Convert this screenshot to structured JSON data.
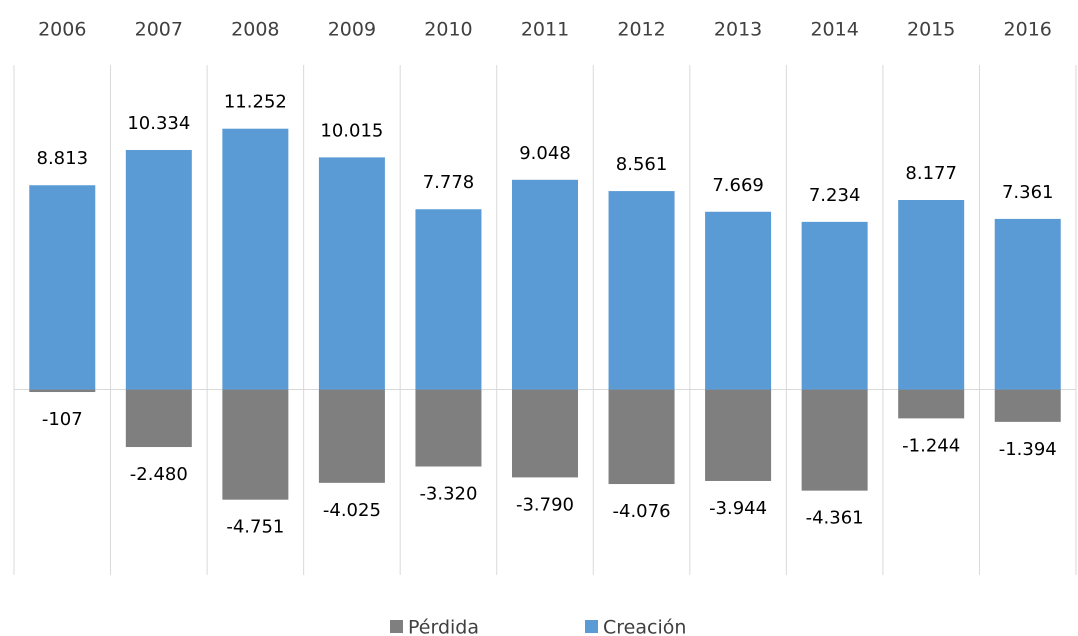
{
  "chart_data": {
    "type": "bar",
    "categories": [
      "2006",
      "2007",
      "2008",
      "2009",
      "2010",
      "2011",
      "2012",
      "2013",
      "2014",
      "2015",
      "2016"
    ],
    "series": [
      {
        "name": "Pérdida",
        "color": "#7f7f7f",
        "values": [
          -107,
          -2480,
          -4751,
          -4025,
          -3320,
          -3790,
          -4076,
          -3944,
          -4361,
          -1244,
          -1394
        ],
        "value_labels": [
          "-107",
          "-2.480",
          "-4.751",
          "-4.025",
          "-3.320",
          "-3.790",
          "-4.076",
          "-3.944",
          "-4.361",
          "-1.244",
          "-1.394"
        ]
      },
      {
        "name": "Creación",
        "color": "#5b9bd5",
        "values": [
          8813,
          10334,
          11252,
          10015,
          7778,
          9048,
          8561,
          7669,
          7234,
          8177,
          7361
        ],
        "value_labels": [
          "8.813",
          "10.334",
          "11.252",
          "10.015",
          "7.778",
          "9.048",
          "8.561",
          "7.669",
          "7.234",
          "8.177",
          "7.361"
        ]
      }
    ],
    "ylim": [
      -8000,
      14000
    ],
    "legend": "bottom"
  }
}
